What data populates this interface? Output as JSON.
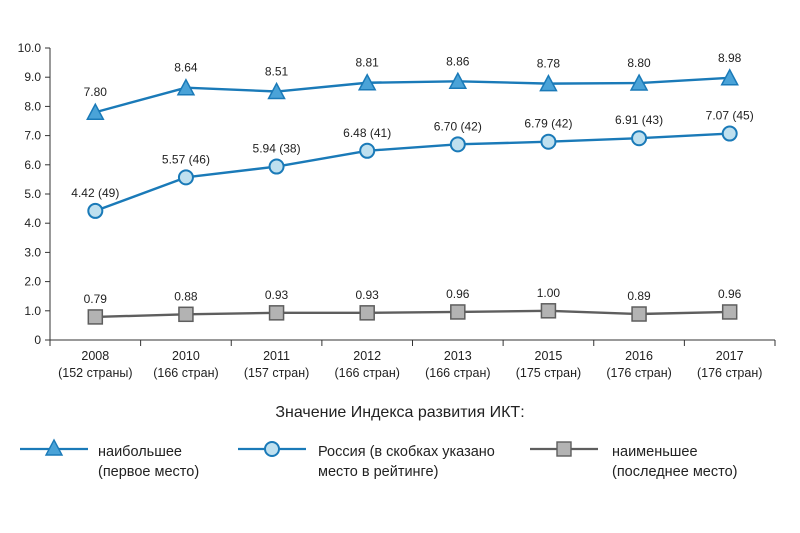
{
  "chart_data": {
    "type": "line",
    "categories": [
      "2008",
      "2010",
      "2011",
      "2012",
      "2013",
      "2015",
      "2016",
      "2017"
    ],
    "category_sublabels": [
      "(152 страны)",
      "(166 стран)",
      "(157 стран)",
      "(166 стран)",
      "(166 стран)",
      "(175 стран)",
      "(176 стран)",
      "(176 стран)"
    ],
    "yticks": [
      "0",
      "1.0",
      "2.0",
      "3.0",
      "4.0",
      "5.0",
      "6.0",
      "7.0",
      "8.0",
      "9.0",
      "10.0"
    ],
    "ylim": [
      0,
      10
    ],
    "grid": false,
    "series": [
      {
        "key": "max",
        "values": [
          7.8,
          8.64,
          8.51,
          8.81,
          8.86,
          8.78,
          8.8,
          8.98
        ],
        "labels": [
          "7.80",
          "8.64",
          "8.51",
          "8.81",
          "8.86",
          "8.78",
          "8.80",
          "8.98"
        ],
        "color": "#1a7ab8",
        "marker_fill": "#4aa3d8",
        "marker": "triangle"
      },
      {
        "key": "russia",
        "values": [
          4.42,
          5.57,
          5.94,
          6.48,
          6.7,
          6.79,
          6.91,
          7.07
        ],
        "labels": [
          "4.42 (49)",
          "5.57 (46)",
          "5.94 (38)",
          "6.48 (41)",
          "6.70 (42)",
          "6.79 (42)",
          "6.91 (43)",
          "7.07 (45)"
        ],
        "color": "#1a7ab8",
        "marker_fill": "#bfe0ef",
        "marker": "circle"
      },
      {
        "key": "min",
        "values": [
          0.79,
          0.88,
          0.93,
          0.93,
          0.96,
          1.0,
          0.89,
          0.96
        ],
        "labels": [
          "0.79",
          "0.88",
          "0.93",
          "0.93",
          "0.96",
          "1.00",
          "0.89",
          "0.96"
        ],
        "color": "#5e5e5e",
        "marker_fill": "#b3b3b3",
        "marker": "square"
      }
    ]
  },
  "legend": {
    "title": "Значение Индекса развития ИКТ:",
    "items": [
      {
        "line1": "наибольшее",
        "line2": "(первое место)"
      },
      {
        "line1": "Россия (в скобках указано",
        "line2": "место в рейтинге)"
      },
      {
        "line1": "наименьшее",
        "line2": "(последнее место)"
      }
    ]
  }
}
